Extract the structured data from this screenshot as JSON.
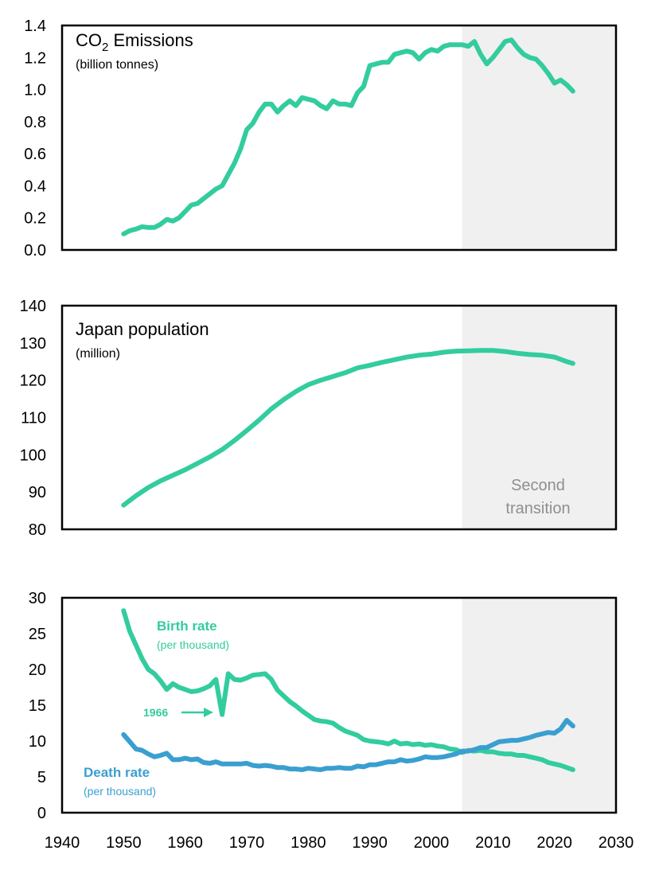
{
  "colors": {
    "green": "#33cc9f",
    "blue": "#3a9fd0",
    "shade": "#f0f0f0",
    "shade_text": "#8f8f8f",
    "frame": "#000000"
  },
  "shaded_region": {
    "start": 2005,
    "end": 2030,
    "label_line1": "Second",
    "label_line2": "transition"
  },
  "chart_data": [
    {
      "type": "line",
      "title": "CO",
      "title_subscript": "2",
      "title_suffix": " Emissions",
      "subtitle": "(billion tonnes)",
      "xlim": [
        1940,
        2030
      ],
      "ylim": [
        0,
        1.4
      ],
      "yticks": [
        "0.0",
        "0.2",
        "0.4",
        "0.6",
        "0.8",
        "1.0",
        "1.2",
        "1.4"
      ],
      "series": [
        {
          "name": "CO2 Emissions",
          "color": "#33cc9f",
          "x": [
            1950,
            1951,
            1952,
            1953,
            1954,
            1955,
            1956,
            1957,
            1958,
            1959,
            1960,
            1961,
            1962,
            1963,
            1964,
            1965,
            1966,
            1967,
            1968,
            1969,
            1970,
            1971,
            1972,
            1973,
            1974,
            1975,
            1976,
            1977,
            1978,
            1979,
            1980,
            1981,
            1982,
            1983,
            1984,
            1985,
            1986,
            1987,
            1988,
            1989,
            1990,
            1991,
            1992,
            1993,
            1994,
            1995,
            1996,
            1997,
            1998,
            1999,
            2000,
            2001,
            2002,
            2003,
            2004,
            2005,
            2006,
            2007,
            2008,
            2009,
            2010,
            2011,
            2012,
            2013,
            2014,
            2015,
            2016,
            2017,
            2018,
            2019,
            2020,
            2021,
            2022,
            2023
          ],
          "values": [
            0.1,
            0.12,
            0.13,
            0.145,
            0.14,
            0.14,
            0.16,
            0.19,
            0.18,
            0.2,
            0.24,
            0.28,
            0.29,
            0.32,
            0.35,
            0.38,
            0.4,
            0.47,
            0.54,
            0.63,
            0.75,
            0.79,
            0.86,
            0.91,
            0.91,
            0.86,
            0.9,
            0.93,
            0.9,
            0.95,
            0.94,
            0.93,
            0.9,
            0.88,
            0.93,
            0.91,
            0.91,
            0.9,
            0.98,
            1.02,
            1.15,
            1.16,
            1.17,
            1.17,
            1.22,
            1.23,
            1.24,
            1.23,
            1.19,
            1.23,
            1.25,
            1.24,
            1.27,
            1.28,
            1.28,
            1.28,
            1.27,
            1.3,
            1.22,
            1.16,
            1.2,
            1.25,
            1.3,
            1.31,
            1.26,
            1.22,
            1.2,
            1.19,
            1.15,
            1.1,
            1.04,
            1.06,
            1.03,
            0.99
          ]
        }
      ]
    },
    {
      "type": "line",
      "title": "Japan population",
      "subtitle": "(million)",
      "xlim": [
        1940,
        2030
      ],
      "ylim": [
        80,
        140
      ],
      "yticks": [
        "80",
        "90",
        "100",
        "110",
        "120",
        "130",
        "140"
      ],
      "series": [
        {
          "name": "Japan population",
          "color": "#33cc9f",
          "x": [
            1950,
            1952,
            1954,
            1956,
            1958,
            1960,
            1962,
            1964,
            1966,
            1968,
            1970,
            1972,
            1974,
            1976,
            1978,
            1980,
            1982,
            1984,
            1986,
            1988,
            1990,
            1992,
            1994,
            1996,
            1998,
            2000,
            2002,
            2004,
            2006,
            2008,
            2010,
            2012,
            2014,
            2016,
            2018,
            2020,
            2022,
            2023
          ],
          "values": [
            86.5,
            89.0,
            91.2,
            93.0,
            94.5,
            96.0,
            97.7,
            99.4,
            101.4,
            103.8,
            106.5,
            109.3,
            112.3,
            114.8,
            117.0,
            118.8,
            120.0,
            121.0,
            122.0,
            123.3,
            124.0,
            124.8,
            125.5,
            126.2,
            126.7,
            127.0,
            127.5,
            127.8,
            127.9,
            128.0,
            128.0,
            127.7,
            127.2,
            126.9,
            126.7,
            126.2,
            125.0,
            124.5
          ]
        }
      ]
    },
    {
      "type": "line",
      "xlabel": "",
      "xlim": [
        1940,
        2030
      ],
      "xticks": [
        "1940",
        "1950",
        "1960",
        "1970",
        "1980",
        "1990",
        "2000",
        "2010",
        "2020",
        "2030"
      ],
      "ylim": [
        0,
        30
      ],
      "yticks": [
        "0",
        "5",
        "10",
        "15",
        "20",
        "25",
        "30"
      ],
      "annotation": {
        "text": "1966",
        "x": 1966,
        "y": 14.6
      },
      "series": [
        {
          "name": "Birth rate",
          "unit": "(per thousand)",
          "color": "#33cc9f",
          "x": [
            1950,
            1951,
            1952,
            1953,
            1954,
            1955,
            1956,
            1957,
            1958,
            1959,
            1960,
            1961,
            1962,
            1963,
            1964,
            1965,
            1966,
            1967,
            1968,
            1969,
            1970,
            1971,
            1972,
            1973,
            1974,
            1975,
            1976,
            1977,
            1978,
            1979,
            1980,
            1981,
            1982,
            1983,
            1984,
            1985,
            1986,
            1987,
            1988,
            1989,
            1990,
            1991,
            1992,
            1993,
            1994,
            1995,
            1996,
            1997,
            1998,
            1999,
            2000,
            2001,
            2002,
            2003,
            2004,
            2005,
            2006,
            2007,
            2008,
            2009,
            2010,
            2011,
            2012,
            2013,
            2014,
            2015,
            2016,
            2017,
            2018,
            2019,
            2020,
            2021,
            2022,
            2023
          ],
          "values": [
            28.2,
            25.3,
            23.4,
            21.5,
            20.0,
            19.4,
            18.4,
            17.2,
            18.0,
            17.5,
            17.2,
            16.9,
            17.0,
            17.3,
            17.7,
            18.6,
            13.7,
            19.4,
            18.6,
            18.5,
            18.8,
            19.2,
            19.3,
            19.4,
            18.6,
            17.1,
            16.3,
            15.5,
            14.9,
            14.2,
            13.6,
            13.0,
            12.8,
            12.7,
            12.5,
            11.9,
            11.4,
            11.1,
            10.8,
            10.2,
            10.0,
            9.9,
            9.8,
            9.6,
            10.0,
            9.6,
            9.7,
            9.5,
            9.6,
            9.4,
            9.5,
            9.3,
            9.2,
            8.9,
            8.8,
            8.4,
            8.7,
            8.6,
            8.7,
            8.5,
            8.5,
            8.3,
            8.2,
            8.2,
            8.0,
            8.0,
            7.8,
            7.6,
            7.4,
            7.0,
            6.8,
            6.6,
            6.3,
            6.0
          ]
        },
        {
          "name": "Death rate",
          "unit": "(per thousand)",
          "color": "#3a9fd0",
          "x": [
            1950,
            1951,
            1952,
            1953,
            1954,
            1955,
            1956,
            1957,
            1958,
            1959,
            1960,
            1961,
            1962,
            1963,
            1964,
            1965,
            1966,
            1967,
            1968,
            1969,
            1970,
            1971,
            1972,
            1973,
            1974,
            1975,
            1976,
            1977,
            1978,
            1979,
            1980,
            1981,
            1982,
            1983,
            1984,
            1985,
            1986,
            1987,
            1988,
            1989,
            1990,
            1991,
            1992,
            1993,
            1994,
            1995,
            1996,
            1997,
            1998,
            1999,
            2000,
            2001,
            2002,
            2003,
            2004,
            2005,
            2006,
            2007,
            2008,
            2009,
            2010,
            2011,
            2012,
            2013,
            2014,
            2015,
            2016,
            2017,
            2018,
            2019,
            2020,
            2021,
            2022,
            2023
          ],
          "values": [
            10.9,
            9.9,
            8.9,
            8.7,
            8.2,
            7.8,
            8.0,
            8.3,
            7.4,
            7.4,
            7.6,
            7.4,
            7.5,
            7.0,
            6.9,
            7.1,
            6.8,
            6.8,
            6.8,
            6.8,
            6.9,
            6.6,
            6.5,
            6.6,
            6.5,
            6.3,
            6.3,
            6.1,
            6.1,
            6.0,
            6.2,
            6.1,
            6.0,
            6.2,
            6.2,
            6.3,
            6.2,
            6.2,
            6.5,
            6.4,
            6.7,
            6.7,
            6.9,
            7.1,
            7.1,
            7.4,
            7.2,
            7.3,
            7.5,
            7.8,
            7.7,
            7.7,
            7.8,
            8.0,
            8.2,
            8.6,
            8.6,
            8.8,
            9.1,
            9.1,
            9.5,
            9.9,
            10.0,
            10.1,
            10.1,
            10.3,
            10.5,
            10.8,
            11.0,
            11.2,
            11.1,
            11.7,
            12.9,
            12.1
          ]
        }
      ]
    }
  ]
}
